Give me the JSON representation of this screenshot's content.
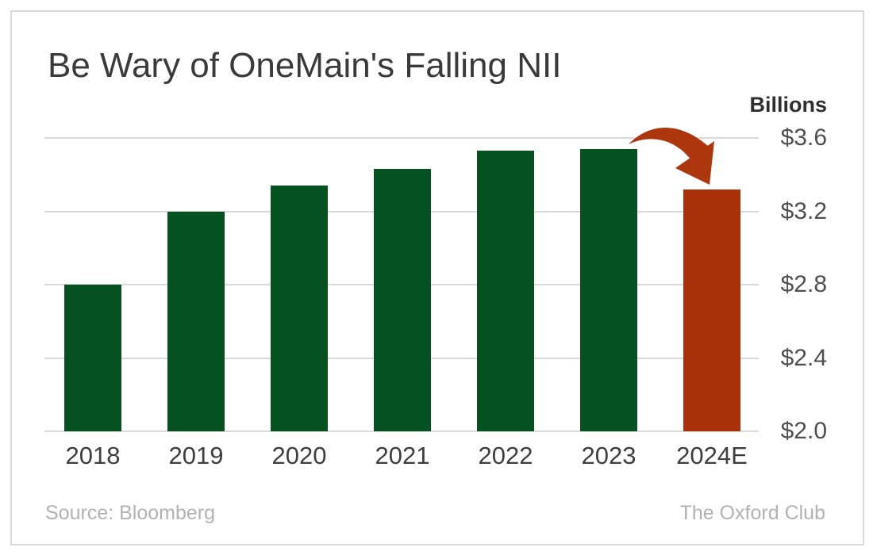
{
  "title": "Be Wary of OneMain's Falling NII",
  "unit_label": "Billions",
  "chart_data": {
    "type": "bar",
    "title": "Be Wary of OneMain's Falling NII",
    "ylabel": "Billions",
    "categories": [
      "2018",
      "2019",
      "2020",
      "2021",
      "2022",
      "2023",
      "2024E"
    ],
    "values": [
      2.8,
      3.2,
      3.34,
      3.43,
      3.53,
      3.54,
      3.32
    ],
    "bar_colors": [
      "#055120",
      "#055120",
      "#055120",
      "#055120",
      "#055120",
      "#055120",
      "#a93008"
    ],
    "y_ticks": [
      "$3.6",
      "$3.2",
      "$2.8",
      "$2.4",
      "$2.0"
    ],
    "y_tick_values": [
      3.6,
      3.2,
      2.8,
      2.4,
      2.0
    ],
    "ylim": [
      2.0,
      3.72
    ],
    "grid": true,
    "legend": "none",
    "y_axis_side": "right",
    "annotation": "curved red arrow from top of 2023 bar down to 2024E bar"
  },
  "footer": {
    "source": "Source: Bloomberg",
    "brand": "The Oxford Club"
  },
  "colors": {
    "green_bar": "#055120",
    "red_bar": "#a93008",
    "arrow": "#ae360e",
    "gridline": "#d9d9d9",
    "title_text": "#3a3a3a",
    "axis_text": "#4f4f4f",
    "footer_text": "#b2b2b2",
    "card_border": "#d9d9d9"
  }
}
